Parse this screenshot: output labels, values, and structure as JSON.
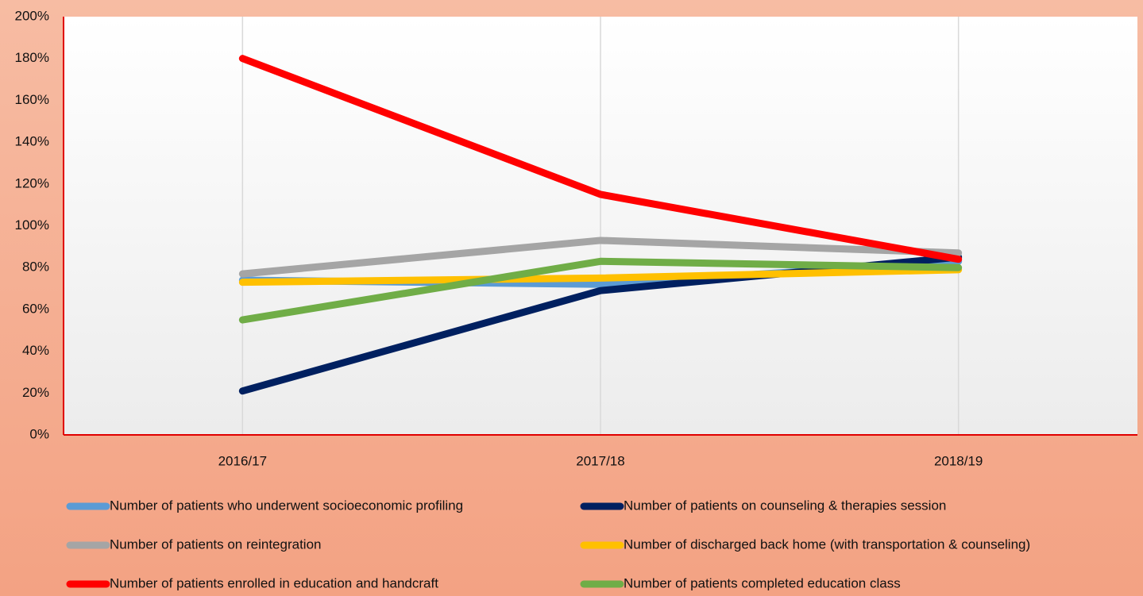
{
  "chart_data": {
    "type": "line",
    "categories": [
      "2016/17",
      "2017/18",
      "2018/19"
    ],
    "series": [
      {
        "name": "Number of patients who underwent socioeconomic profiling",
        "color": "#5b9bd5",
        "values": [
          74,
          72,
          83
        ]
      },
      {
        "name": "Number of patients on counseling & therapies session",
        "color": "#002060",
        "values": [
          21,
          69,
          85
        ]
      },
      {
        "name": "Number of patients on reintegration",
        "color": "#a5a5a5",
        "values": [
          77,
          93,
          87
        ]
      },
      {
        "name": "Number of discharged back home (with transportation & counseling)",
        "color": "#ffc000",
        "values": [
          73,
          75,
          79
        ]
      },
      {
        "name": "Number of patients enrolled in education and handcraft",
        "color": "#ff0000",
        "values": [
          180,
          115,
          84
        ]
      },
      {
        "name": "Number of patients completed education class",
        "color": "#70ad47",
        "values": [
          55,
          83,
          80
        ]
      }
    ],
    "ylim": [
      0,
      200
    ],
    "yticks": [
      {
        "value": 0,
        "label": "0%"
      },
      {
        "value": 20,
        "label": "20%"
      },
      {
        "value": 40,
        "label": "40%"
      },
      {
        "value": 60,
        "label": "60%"
      },
      {
        "value": 80,
        "label": "80%"
      },
      {
        "value": 100,
        "label": "100%"
      },
      {
        "value": 120,
        "label": "120%"
      },
      {
        "value": 140,
        "label": "140%"
      },
      {
        "value": 160,
        "label": "160%"
      },
      {
        "value": 180,
        "label": "180%"
      },
      {
        "value": 200,
        "label": "200%"
      }
    ],
    "grid": "x",
    "legend": "bottom"
  }
}
